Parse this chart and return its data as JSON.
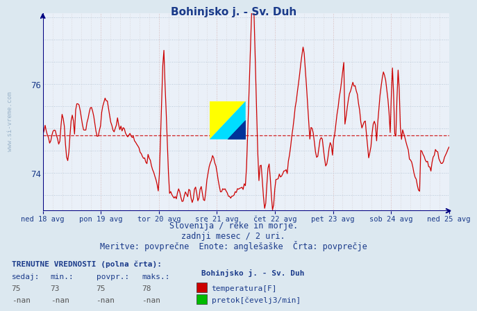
{
  "title": "Bohinjsko j. - Sv. Duh",
  "title_color": "#1a3a8a",
  "bg_color": "#dce8f0",
  "plot_bg_color": "#eaf0f8",
  "grid_color_v": "#c8b0b0",
  "grid_color_h": "#c0ccd8",
  "line_color": "#cc0000",
  "avg_line_color": "#cc0000",
  "avg_line_value": 74.85,
  "ylim": [
    73.15,
    77.6
  ],
  "yticks": [
    74,
    76
  ],
  "tick_label_color": "#1a3a8a",
  "tick_labels": [
    "ned 18 avg",
    "pon 19 avg",
    "tor 20 avg",
    "sre 21 avg",
    "čet 22 avg",
    "pet 23 avg",
    "sob 24 avg",
    "ned 25 avg"
  ],
  "subtitle1": "Slovenija / reke in morje.",
  "subtitle2": "zadnji mesec / 2 uri.",
  "subtitle3": "Meritve: povprečne  Enote: anglešaške  Črta: povprečje",
  "footer_title": "TRENUTNE VREDNOSTI (polna črta):",
  "col_headers": [
    "sedaj:",
    "min.:",
    "povpr.:",
    "maks.:"
  ],
  "row1_vals": [
    "75",
    "73",
    "75",
    "78"
  ],
  "row2_vals": [
    "-nan",
    "-nan",
    "-nan",
    "-nan"
  ],
  "legend_label1": "temperatura[F]",
  "legend_color1": "#cc0000",
  "legend_label2": "pretok[čevelj3/min]",
  "legend_color2": "#00bb00",
  "station_name": "Bohinjsko j. - Sv. Duh",
  "axis_color": "#000080",
  "text_color": "#1a3a8a"
}
